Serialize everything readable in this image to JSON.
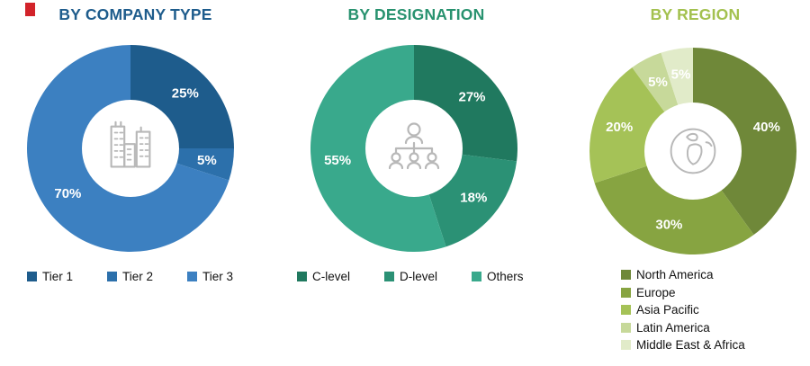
{
  "decor": {
    "red_mark_color": "#d2232a"
  },
  "chart_data": [
    {
      "type": "donut",
      "title": "BY COMPANY TYPE",
      "title_color": "#1e5c8c",
      "center_icon": "buildings-icon",
      "legend_position": "bottom-horizontal",
      "total": 100,
      "segments": [
        {
          "label": "Tier 1",
          "value": 25,
          "display": "25%",
          "color": "#1e5c8c"
        },
        {
          "label": "Tier 2",
          "value": 5,
          "display": "5%",
          "color": "#2c70ab"
        },
        {
          "label": "Tier 3",
          "value": 70,
          "display": "70%",
          "color": "#3c80c1"
        }
      ]
    },
    {
      "type": "donut",
      "title": "BY DESIGNATION",
      "title_color": "#28926f",
      "center_icon": "org-chart-icon",
      "legend_position": "bottom-horizontal",
      "total": 100,
      "segments": [
        {
          "label": "C-level",
          "value": 27,
          "display": "27%",
          "color": "#20795f"
        },
        {
          "label": "D-level",
          "value": 18,
          "display": "18%",
          "color": "#2b9175"
        },
        {
          "label": "Others",
          "value": 55,
          "display": "55%",
          "color": "#39a98c"
        }
      ]
    },
    {
      "type": "donut",
      "title": "BY REGION",
      "title_color": "#a3c14f",
      "center_icon": "globe-icon",
      "legend_position": "bottom-vertical",
      "total": 100,
      "segments": [
        {
          "label": "North America",
          "value": 40,
          "display": "40%",
          "color": "#6f8839"
        },
        {
          "label": "Europe",
          "value": 30,
          "display": "30%",
          "color": "#87a441"
        },
        {
          "label": "Asia Pacific",
          "value": 20,
          "display": "20%",
          "color": "#a5c257"
        },
        {
          "label": "Latin America",
          "value": 5,
          "display": "5%",
          "color": "#c7d99a"
        },
        {
          "label": "Middle East & Africa",
          "value": 5,
          "display": "5%",
          "color": "#e1ebc9"
        }
      ]
    }
  ]
}
